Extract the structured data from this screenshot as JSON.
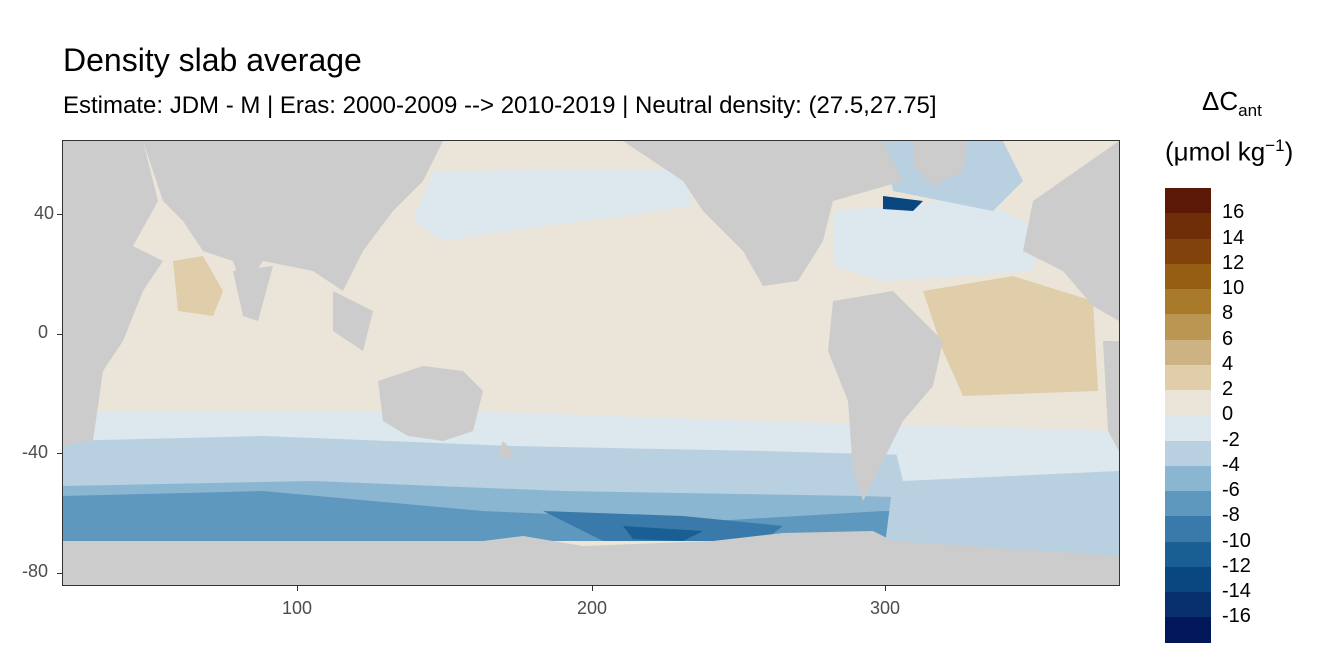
{
  "title": "Density slab average",
  "subtitle": "Estimate: JDM - M | Eras: 2000-2009 --> 2010-2019 | Neutral density: (27.5,27.75]",
  "legend": {
    "symbol": "ΔC",
    "symbol_sub": "ant",
    "unit": "(μmol kg",
    "unit_sup": "−1",
    "unit_close": ")",
    "labels": [
      "16",
      "14",
      "12",
      "10",
      "8",
      "6",
      "4",
      "2",
      "0",
      "-2",
      "-4",
      "-6",
      "-8",
      "-10",
      "-12",
      "-14",
      "-16"
    ],
    "colors": [
      "#5b1807",
      "#6f2e08",
      "#81430b",
      "#955e12",
      "#a97a2a",
      "#bb9552",
      "#cdb283",
      "#e0ceaa",
      "#ebe5d9",
      "#dde7ee",
      "#b8d0e0",
      "#8bb6d1",
      "#5f98be",
      "#3a7aaa",
      "#195f93",
      "#0a4680",
      "#062f6b",
      "#02165a"
    ]
  },
  "axes": {
    "x_ticks": [
      "100",
      "200",
      "300"
    ],
    "y_ticks": [
      "40",
      "0",
      "-40",
      "-80"
    ]
  },
  "chart_data": {
    "type": "heatmap",
    "title": "Density slab average",
    "xlim": [
      20,
      380
    ],
    "ylim": [
      -85,
      65
    ],
    "x_ticks": [
      100,
      200,
      300
    ],
    "y_ticks": [
      40,
      0,
      -40,
      -80
    ],
    "land_color": "#cccccc",
    "colorbar_breaks": [
      16,
      14,
      12,
      10,
      8,
      6,
      4,
      2,
      0,
      -2,
      -4,
      -6,
      -8,
      -10,
      -12,
      -14,
      -16
    ],
    "grid": false
  }
}
